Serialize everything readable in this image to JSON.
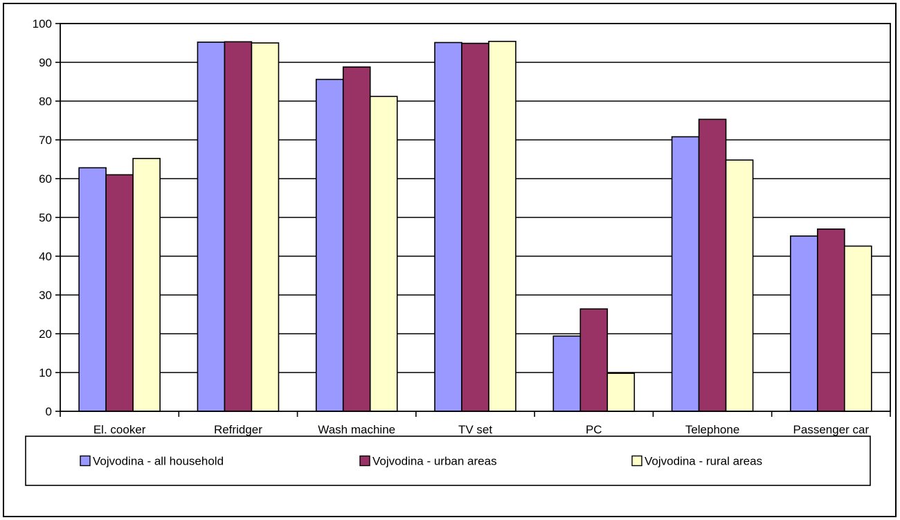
{
  "chart_data": {
    "type": "bar",
    "categories": [
      "El. cooker",
      "Refridger",
      "Wash machine",
      "TV set",
      "PC",
      "Telephone",
      "Passenger car"
    ],
    "series": [
      {
        "name": "Vojvodina - all household",
        "color": "#9999FF",
        "values": [
          62.8,
          95.2,
          85.6,
          95.1,
          19.4,
          70.8,
          45.2
        ]
      },
      {
        "name": "Vojvodina - urban areas",
        "color": "#993366",
        "values": [
          61.0,
          95.3,
          88.8,
          94.9,
          26.4,
          75.3,
          47.0
        ]
      },
      {
        "name": "Vojvodina - rural areas",
        "color": "#FFFFCC",
        "values": [
          65.2,
          95.0,
          81.2,
          95.4,
          9.8,
          64.8,
          42.6
        ]
      }
    ],
    "ylim": [
      0,
      100
    ],
    "yticks": [
      "0",
      "10",
      "20",
      "30",
      "40",
      "50",
      "60",
      "70",
      "80",
      "90",
      "100"
    ],
    "grid": true,
    "legend_position": "bottom",
    "title": "",
    "xlabel": "",
    "ylabel": ""
  }
}
